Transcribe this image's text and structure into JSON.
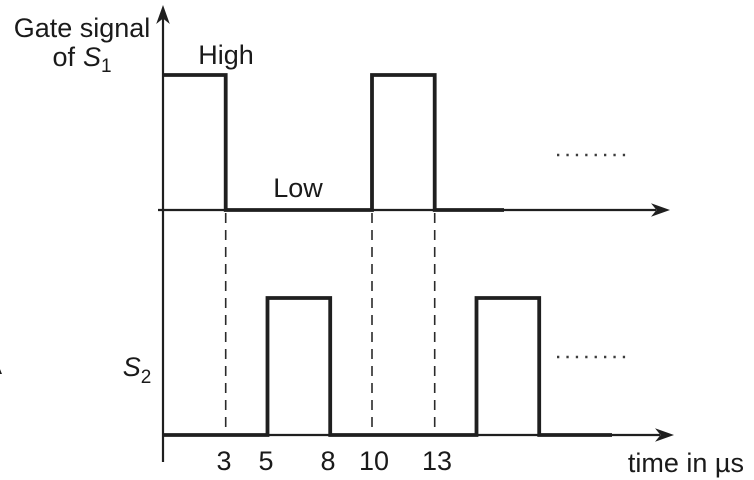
{
  "figure": {
    "background": "#ffffff",
    "ink": "#1a1a1a",
    "y_axis_label_line1": "Gate signal",
    "y_axis_label_line2_prefix": "of",
    "s1": {
      "symbol": "S",
      "sub": "1"
    },
    "s2": {
      "symbol": "S",
      "sub": "2"
    },
    "high_label": "High",
    "low_label": "Low",
    "x_axis_label": "time in µs",
    "edge_artifact": "A"
  },
  "chart_data": {
    "type": "line",
    "subtype": "square-wave-timing-diagram",
    "xlabel": "time in µs",
    "x_ticks": [
      "3",
      "5",
      "8",
      "10",
      "13"
    ],
    "x_tick_values_us": [
      3,
      5,
      8,
      10,
      13
    ],
    "levels": {
      "high": "High",
      "low": "Low"
    },
    "series": [
      {
        "name": "Gate signal of S1",
        "high_intervals_us": [
          [
            0,
            3
          ],
          [
            10,
            13
          ]
        ],
        "continues_with_dots": true
      },
      {
        "name": "S2",
        "high_intervals_us": [
          [
            5,
            8
          ],
          [
            15,
            18
          ]
        ],
        "continues_with_dots": true
      }
    ],
    "dashed_guides_us": [
      3,
      10,
      13
    ],
    "grid": false,
    "legend": false
  }
}
